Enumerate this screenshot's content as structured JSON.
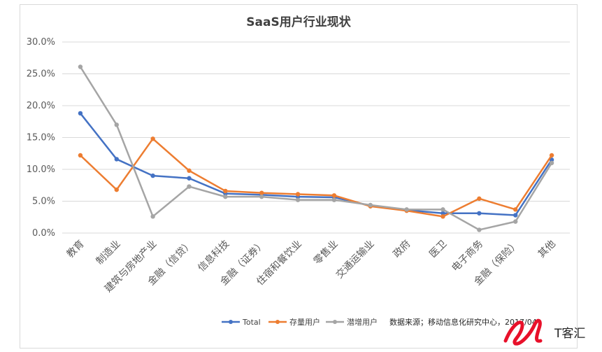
{
  "chart_data": {
    "type": "line",
    "title": "SaaS用户行业现状",
    "categories": [
      "教育",
      "制造业",
      "建筑与房地产业",
      "金融（信贷）",
      "信息科技",
      "金融（证券）",
      "住宿和餐饮业",
      "零售业",
      "交通运输业",
      "政府",
      "医卫",
      "电子商务",
      "金融（保险）",
      "其他"
    ],
    "ylim": [
      0,
      30
    ],
    "yticks": [
      "0.0%",
      "5.0%",
      "10.0%",
      "15.0%",
      "20.0%",
      "25.0%",
      "30.0%"
    ],
    "grid": true,
    "legend_position": "bottom",
    "series": [
      {
        "name": "Total",
        "color": "#4472c4",
        "values": [
          18.8,
          11.6,
          9.0,
          8.6,
          6.2,
          6.0,
          5.7,
          5.6,
          4.3,
          3.6,
          3.1,
          3.1,
          2.8,
          11.5
        ]
      },
      {
        "name": "存量用户",
        "color": "#ed7d31",
        "values": [
          12.2,
          6.8,
          14.8,
          9.8,
          6.6,
          6.3,
          6.1,
          5.9,
          4.2,
          3.5,
          2.6,
          5.4,
          3.7,
          12.2
        ]
      },
      {
        "name": "潜增用户",
        "color": "#a5a5a5",
        "values": [
          26.1,
          17.0,
          2.6,
          7.3,
          5.7,
          5.7,
          5.2,
          5.2,
          4.4,
          3.7,
          3.7,
          0.5,
          1.8,
          11.0
        ]
      }
    ],
    "source_note": "数据来源；移动信息化研究中心，2017/04"
  },
  "watermark": {
    "text": "T客汇"
  }
}
